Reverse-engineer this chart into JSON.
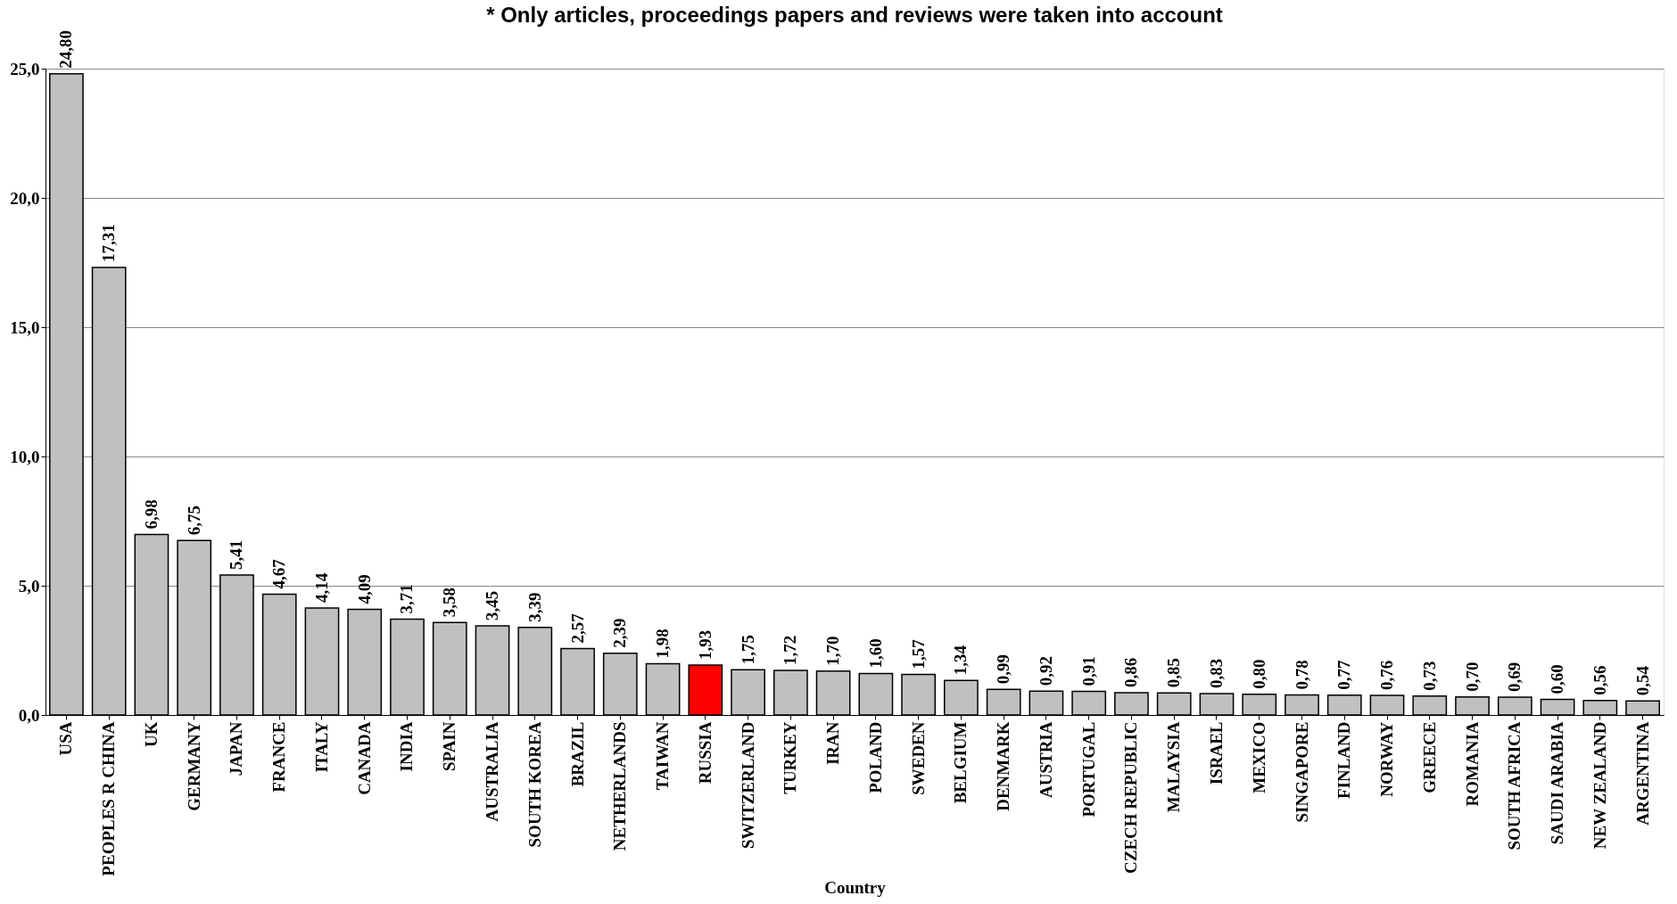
{
  "chart_data": {
    "type": "bar",
    "annotations": [
      "* Only articles, proceedings papers and reviews were taken into account"
    ],
    "xlabel": "Country",
    "categories": [
      "USA",
      "PEOPLES R CHINA",
      "UK",
      "GERMANY",
      "JAPAN",
      "FRANCE",
      "ITALY",
      "CANADA",
      "INDIA",
      "SPAIN",
      "AUSTRALIA",
      "SOUTH KOREA",
      "BRAZIL",
      "NETHERLANDS",
      "TAIWAN",
      "RUSSIA",
      "SWITZERLAND",
      "TURKEY",
      "IRAN",
      "POLAND",
      "SWEDEN",
      "BELGIUM",
      "DENMARK",
      "AUSTRIA",
      "PORTUGAL",
      "CZECH REPUBLIC",
      "MALAYSIA",
      "ISRAEL",
      "MEXICO",
      "SINGAPORE",
      "FINLAND",
      "NORWAY",
      "GREECE",
      "ROMANIA",
      "SOUTH AFRICA",
      "SAUDI ARABIA",
      "NEW ZEALAND",
      "ARGENTINA"
    ],
    "values": [
      24.8,
      17.31,
      6.98,
      6.75,
      5.41,
      4.67,
      4.14,
      4.09,
      3.71,
      3.58,
      3.45,
      3.39,
      2.57,
      2.39,
      1.98,
      1.93,
      1.75,
      1.72,
      1.7,
      1.6,
      1.57,
      1.34,
      0.99,
      0.92,
      0.91,
      0.86,
      0.85,
      0.83,
      0.8,
      0.78,
      0.77,
      0.76,
      0.73,
      0.7,
      0.69,
      0.6,
      0.56,
      0.54
    ],
    "value_labels": [
      "24,80",
      "17,31",
      "6,98",
      "6,75",
      "5,41",
      "4,67",
      "4,14",
      "4,09",
      "3,71",
      "3,58",
      "3,45",
      "3,39",
      "2,57",
      "2,39",
      "1,98",
      "1,93",
      "1,75",
      "1,72",
      "1,70",
      "1,60",
      "1,57",
      "1,34",
      "0,99",
      "0,92",
      "0,91",
      "0,86",
      "0,85",
      "0,83",
      "0,80",
      "0,78",
      "0,77",
      "0,76",
      "0,73",
      "0,70",
      "0,69",
      "0,60",
      "0,56",
      "0,54"
    ],
    "colors": [
      "#c0c0c0",
      "#c0c0c0",
      "#c0c0c0",
      "#c0c0c0",
      "#c0c0c0",
      "#c0c0c0",
      "#c0c0c0",
      "#c0c0c0",
      "#c0c0c0",
      "#c0c0c0",
      "#c0c0c0",
      "#c0c0c0",
      "#c0c0c0",
      "#c0c0c0",
      "#c0c0c0",
      "#ff0000",
      "#c0c0c0",
      "#c0c0c0",
      "#c0c0c0",
      "#c0c0c0",
      "#c0c0c0",
      "#c0c0c0",
      "#c0c0c0",
      "#c0c0c0",
      "#c0c0c0",
      "#c0c0c0",
      "#c0c0c0",
      "#c0c0c0",
      "#c0c0c0",
      "#c0c0c0",
      "#c0c0c0",
      "#c0c0c0",
      "#c0c0c0",
      "#c0c0c0",
      "#c0c0c0",
      "#c0c0c0",
      "#c0c0c0",
      "#c0c0c0"
    ],
    "ylim": [
      0,
      25
    ],
    "yticks": [
      {
        "value": 0,
        "label": "0,0"
      },
      {
        "value": 5,
        "label": "5,0"
      },
      {
        "value": 10,
        "label": "10,0"
      },
      {
        "value": 15,
        "label": "15,0"
      },
      {
        "value": 20,
        "label": "20,0"
      },
      {
        "value": 25,
        "label": "25,0"
      }
    ],
    "grid": "y"
  }
}
